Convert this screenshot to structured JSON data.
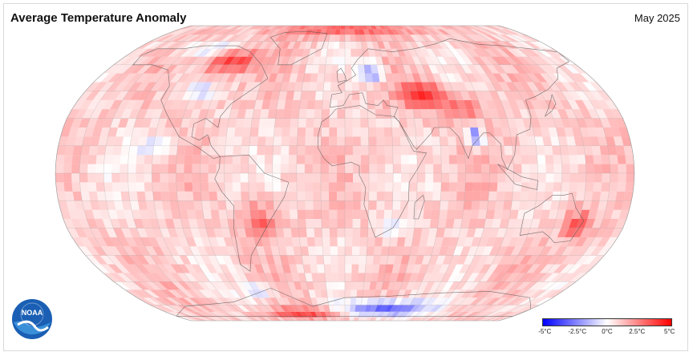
{
  "header": {
    "title": "Average Temperature Anomaly",
    "date": "May 2025"
  },
  "logo": {
    "text": "NOAA",
    "icon": "noaa-logo-icon"
  },
  "legend": {
    "ticks": [
      "-5°C",
      "-2.5°C",
      "0°C",
      "2.5°C",
      "5°C"
    ],
    "min_color": "#0000ff",
    "mid_color": "#ffffff",
    "max_color": "#ff0000"
  },
  "map": {
    "projection": "Robinson",
    "grid": true,
    "graticule_step_deg": 15
  }
}
